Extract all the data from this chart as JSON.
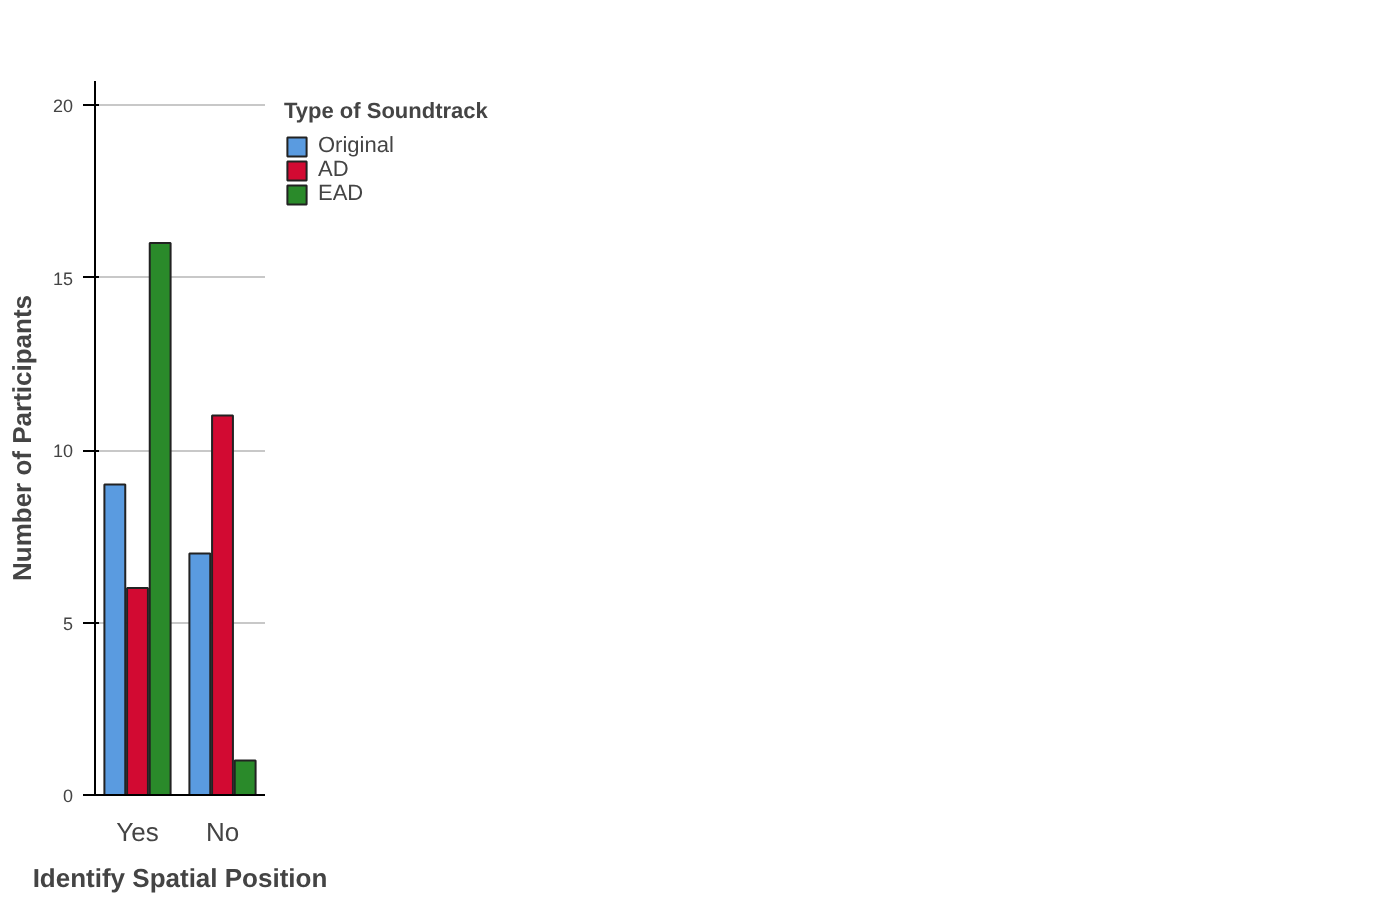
{
  "chart_data": {
    "type": "bar",
    "xlabel": "Identify Spatial Position",
    "ylabel": "Number of Participants",
    "legend_title": "Type of Soundtrack",
    "categories": [
      "Yes",
      "No"
    ],
    "series": [
      {
        "name": "Original",
        "color": "#5a9be0",
        "values": [
          9,
          7
        ]
      },
      {
        "name": "AD",
        "color": "#d20a32",
        "values": [
          6,
          11
        ]
      },
      {
        "name": "EAD",
        "color": "#2a8a2a",
        "values": [
          16,
          1
        ]
      }
    ],
    "ylim": [
      0,
      20.7
    ],
    "yticks": [
      0,
      5,
      10,
      15,
      20
    ],
    "grid": "y",
    "legend": "top right"
  }
}
